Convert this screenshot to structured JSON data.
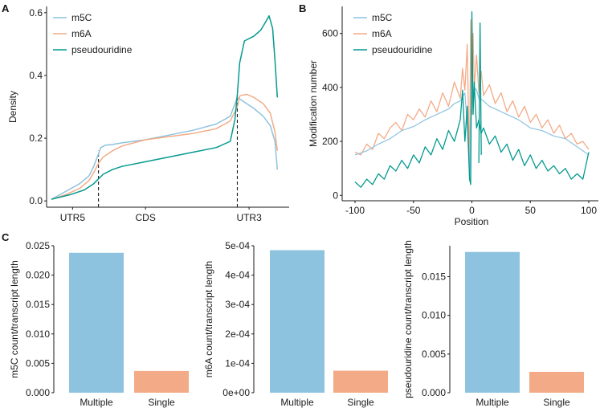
{
  "figure": {
    "panel_labels": [
      "A",
      "B",
      "C"
    ]
  },
  "colors": {
    "m5C": "#8ec3df",
    "m6A": "#f3ab87",
    "pseudouridine": "#049a8f"
  },
  "chart_data": [
    {
      "id": "A",
      "type": "line",
      "title": "",
      "xlabel": "",
      "ylabel": "Density",
      "xlim": [
        0,
        100
      ],
      "ylim": [
        -0.02,
        0.62
      ],
      "yticks": [
        0.0,
        0.2,
        0.4,
        0.6
      ],
      "ytick_labels": [
        "0.0",
        "0.2",
        "0.4",
        "0.6"
      ],
      "regions": [
        {
          "label": "UTR5",
          "at": 9
        },
        {
          "label": "CDS",
          "at": 40
        },
        {
          "label": "UTR3",
          "at": 84
        }
      ],
      "boundaries": [
        {
          "x": 20,
          "ymax": 0.16
        },
        {
          "x": 79,
          "ymax": 0.34
        }
      ],
      "legend": [
        "m5C",
        "m6A",
        "pseudouridine"
      ],
      "legend_position": "top-left",
      "series": [
        {
          "name": "m5C",
          "x": [
            0,
            6,
            12,
            16,
            18,
            20,
            21,
            23,
            26,
            30,
            40,
            50,
            60,
            70,
            76,
            79,
            82,
            86,
            90,
            93,
            95,
            96
          ],
          "y": [
            0.005,
            0.03,
            0.055,
            0.08,
            0.11,
            0.15,
            0.17,
            0.178,
            0.18,
            0.185,
            0.195,
            0.21,
            0.225,
            0.245,
            0.27,
            0.33,
            0.315,
            0.295,
            0.27,
            0.24,
            0.19,
            0.1
          ]
        },
        {
          "name": "m6A",
          "x": [
            0,
            6,
            12,
            16,
            18,
            20,
            22,
            26,
            30,
            40,
            50,
            60,
            70,
            76,
            79,
            80,
            83,
            86,
            90,
            93,
            95,
            96
          ],
          "y": [
            0.005,
            0.02,
            0.04,
            0.065,
            0.09,
            0.12,
            0.14,
            0.16,
            0.175,
            0.195,
            0.205,
            0.215,
            0.23,
            0.255,
            0.3,
            0.335,
            0.34,
            0.33,
            0.31,
            0.28,
            0.22,
            0.16
          ]
        },
        {
          "name": "pseudouridine",
          "x": [
            0,
            8,
            14,
            18,
            20,
            22,
            26,
            30,
            40,
            50,
            60,
            70,
            76,
            78,
            79,
            80,
            82,
            86,
            89,
            91,
            92.5,
            94,
            95,
            96
          ],
          "y": [
            0.005,
            0.02,
            0.035,
            0.055,
            0.07,
            0.085,
            0.1,
            0.11,
            0.125,
            0.14,
            0.155,
            0.17,
            0.19,
            0.26,
            0.34,
            0.44,
            0.51,
            0.525,
            0.545,
            0.57,
            0.59,
            0.55,
            0.45,
            0.33
          ]
        }
      ]
    },
    {
      "id": "B",
      "type": "line",
      "title": "",
      "xlabel": "Position",
      "ylabel": "Modification number",
      "xlim": [
        -100,
        100
      ],
      "ylim": [
        -20,
        700
      ],
      "xticks": [
        -100,
        -50,
        0,
        50,
        100
      ],
      "xtick_labels": [
        "-100",
        "-50",
        "0",
        "50",
        "100"
      ],
      "yticks": [
        0,
        200,
        400,
        600
      ],
      "ytick_labels": [
        "0",
        "200",
        "400",
        "600"
      ],
      "legend": [
        "m5C",
        "m6A",
        "pseudouridine"
      ],
      "legend_position": "top-left",
      "series": [
        {
          "name": "m5C",
          "x": [
            -100,
            -90,
            -80,
            -70,
            -60,
            -50,
            -40,
            -30,
            -20,
            -15,
            -10,
            -6,
            -4,
            -2,
            -1,
            0,
            1,
            2,
            4,
            6,
            10,
            15,
            20,
            30,
            40,
            50,
            60,
            70,
            80,
            90,
            100
          ],
          "y": [
            150,
            165,
            190,
            210,
            240,
            255,
            280,
            300,
            320,
            340,
            350,
            380,
            260,
            60,
            300,
            430,
            330,
            400,
            390,
            360,
            350,
            330,
            320,
            300,
            280,
            250,
            240,
            220,
            210,
            180,
            150
          ]
        },
        {
          "name": "m6A",
          "x": [
            -100,
            -95,
            -90,
            -85,
            -80,
            -75,
            -70,
            -65,
            -60,
            -55,
            -50,
            -45,
            -40,
            -35,
            -30,
            -25,
            -20,
            -15,
            -10,
            -8,
            -6,
            -4,
            -2,
            -1,
            0,
            1,
            2,
            4,
            6,
            8,
            10,
            15,
            20,
            25,
            30,
            35,
            40,
            45,
            50,
            55,
            60,
            65,
            70,
            75,
            80,
            85,
            90,
            95,
            100
          ],
          "y": [
            160,
            150,
            190,
            170,
            230,
            210,
            250,
            270,
            240,
            300,
            280,
            320,
            290,
            350,
            310,
            380,
            330,
            420,
            360,
            470,
            390,
            560,
            90,
            650,
            300,
            600,
            400,
            520,
            380,
            460,
            370,
            410,
            340,
            380,
            310,
            350,
            290,
            330,
            270,
            300,
            250,
            280,
            230,
            260,
            210,
            230,
            190,
            200,
            170
          ]
        },
        {
          "name": "pseudouridine",
          "x": [
            -100,
            -95,
            -90,
            -85,
            -80,
            -75,
            -70,
            -65,
            -60,
            -55,
            -50,
            -45,
            -40,
            -35,
            -30,
            -25,
            -20,
            -15,
            -10,
            -8,
            -6,
            -4,
            -2,
            -1,
            0,
            1,
            2,
            3,
            4,
            6,
            8,
            10,
            15,
            20,
            25,
            30,
            35,
            40,
            45,
            50,
            55,
            60,
            65,
            70,
            75,
            80,
            85,
            90,
            95,
            100
          ],
          "y": [
            50,
            30,
            60,
            40,
            80,
            60,
            110,
            90,
            130,
            100,
            150,
            120,
            180,
            150,
            210,
            170,
            240,
            200,
            280,
            390,
            200,
            330,
            60,
            40,
            680,
            300,
            420,
            330,
            250,
            280,
            230,
            250,
            190,
            220,
            160,
            190,
            130,
            170,
            110,
            150,
            100,
            130,
            90,
            110,
            80,
            100,
            60,
            80,
            60,
            160
          ]
        }
      ],
      "spikes": [
        {
          "name": "pseudouridine",
          "x": 7,
          "y": 640
        }
      ]
    },
    {
      "id": "C1",
      "type": "bar",
      "title": "",
      "ylabel": "m5C count/transcript length",
      "categories": [
        "Multiple",
        "Single"
      ],
      "values": [
        0.0238,
        0.0037
      ],
      "ylim": [
        0,
        0.025
      ],
      "yticks": [
        0,
        0.005,
        0.01,
        0.015,
        0.02,
        0.025
      ],
      "ytick_labels": [
        "0.000",
        "0.005",
        "0.010",
        "0.015",
        "0.020",
        "0.025"
      ]
    },
    {
      "id": "C2",
      "type": "bar",
      "title": "",
      "ylabel": "m6A count/transcript length",
      "categories": [
        "Multiple",
        "Single"
      ],
      "values": [
        0.000485,
        7.5e-05
      ],
      "ylim": [
        0,
        0.0005
      ],
      "yticks": [
        0,
        0.0001,
        0.0002,
        0.0003,
        0.0004,
        0.0005
      ],
      "ytick_labels": [
        "0e+00",
        "1e-04",
        "2e-04",
        "3e-04",
        "4e-04",
        "5e-04"
      ]
    },
    {
      "id": "C3",
      "type": "bar",
      "title": "",
      "ylabel": "pseudouridine count/transcript length",
      "categories": [
        "Multiple",
        "Single"
      ],
      "values": [
        0.0182,
        0.0027
      ],
      "ylim": [
        0,
        0.019
      ],
      "yticks": [
        0,
        0.005,
        0.01,
        0.015
      ],
      "ytick_labels": [
        "0.000",
        "0.005",
        "0.010",
        "0.015"
      ]
    }
  ]
}
